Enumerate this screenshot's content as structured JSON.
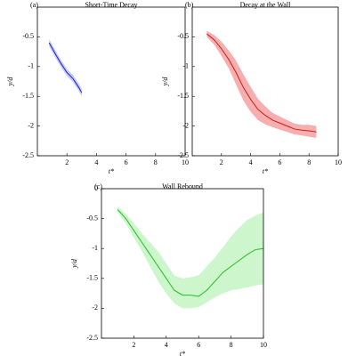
{
  "chart_data": [
    {
      "type": "line",
      "panel_label": "(a)",
      "title": "Short-Time Decay",
      "xlabel": "t*",
      "ylabel": "y/d",
      "xlim": [
        0,
        10
      ],
      "ylim": [
        -2.5,
        0
      ],
      "xticks": [
        2,
        4,
        6,
        8,
        10
      ],
      "yticks": [
        -2.5,
        -2,
        -1.5,
        -1,
        -0.5
      ],
      "color": "#1f1fe0",
      "band_color": "#b8c0f4",
      "x": [
        0.8,
        1.2,
        1.6,
        2.0,
        2.4,
        2.8,
        3.0
      ],
      "values": [
        -0.6,
        -0.78,
        -0.95,
        -1.1,
        -1.2,
        -1.35,
        -1.44
      ],
      "lower": [
        -0.66,
        -0.84,
        -1.01,
        -1.16,
        -1.26,
        -1.41,
        -1.5
      ],
      "upper": [
        -0.54,
        -0.72,
        -0.89,
        -1.04,
        -1.14,
        -1.29,
        -1.38
      ]
    },
    {
      "type": "line",
      "panel_label": "(b)",
      "title": "Decay at the Wall",
      "xlabel": "t*",
      "ylabel": "y/d",
      "xlim": [
        0,
        10
      ],
      "ylim": [
        -2.5,
        0
      ],
      "xticks": [
        2,
        4,
        6,
        8,
        10
      ],
      "yticks": [
        -2.5,
        -2,
        -1.5,
        -1,
        -0.5
      ],
      "color": "#c81e1e",
      "band_color": "#f4a0a0",
      "x": [
        1,
        1.5,
        2,
        2.5,
        3,
        3.5,
        4,
        4.5,
        5,
        5.5,
        6,
        6.5,
        7,
        7.5,
        8,
        8.5
      ],
      "values": [
        -0.45,
        -0.55,
        -0.7,
        -0.88,
        -1.1,
        -1.35,
        -1.55,
        -1.72,
        -1.82,
        -1.9,
        -1.95,
        -2.0,
        -2.05,
        -2.07,
        -2.08,
        -2.1
      ],
      "lower": [
        -0.5,
        -0.63,
        -0.82,
        -1.03,
        -1.3,
        -1.57,
        -1.76,
        -1.9,
        -1.97,
        -2.02,
        -2.06,
        -2.1,
        -2.14,
        -2.16,
        -2.18,
        -2.2
      ],
      "upper": [
        -0.4,
        -0.47,
        -0.58,
        -0.73,
        -0.9,
        -1.13,
        -1.34,
        -1.54,
        -1.67,
        -1.78,
        -1.84,
        -1.9,
        -1.96,
        -1.98,
        -1.98,
        -2.0
      ]
    },
    {
      "type": "line",
      "panel_label": "(c)",
      "title": "Wall Rebound",
      "xlabel": "t*",
      "ylabel": "y/d",
      "xlim": [
        0,
        10
      ],
      "ylim": [
        -2.5,
        0
      ],
      "xticks": [
        2,
        4,
        6,
        8,
        10
      ],
      "yticks": [
        -2.5,
        -2,
        -1.5,
        -1,
        -0.5,
        0
      ],
      "color": "#22c022",
      "band_color": "#c4f4c4",
      "x": [
        1,
        1.5,
        2,
        2.5,
        3,
        3.5,
        4,
        4.5,
        5,
        5.5,
        6,
        6.5,
        7,
        7.5,
        8,
        8.5,
        9,
        9.5,
        10
      ],
      "values": [
        -0.35,
        -0.5,
        -0.7,
        -0.9,
        -1.1,
        -1.3,
        -1.5,
        -1.7,
        -1.78,
        -1.78,
        -1.8,
        -1.7,
        -1.55,
        -1.4,
        -1.3,
        -1.2,
        -1.1,
        -1.02,
        -1.0
      ],
      "lower": [
        -0.4,
        -0.58,
        -0.82,
        -1.05,
        -1.3,
        -1.55,
        -1.75,
        -1.92,
        -2.0,
        -2.0,
        -1.98,
        -1.9,
        -1.82,
        -1.75,
        -1.7,
        -1.68,
        -1.65,
        -1.62,
        -1.6
      ],
      "upper": [
        -0.3,
        -0.42,
        -0.58,
        -0.75,
        -0.9,
        -1.05,
        -1.25,
        -1.45,
        -1.5,
        -1.48,
        -1.45,
        -1.3,
        -1.15,
        -0.98,
        -0.8,
        -0.65,
        -0.52,
        -0.45,
        -0.4
      ]
    }
  ]
}
